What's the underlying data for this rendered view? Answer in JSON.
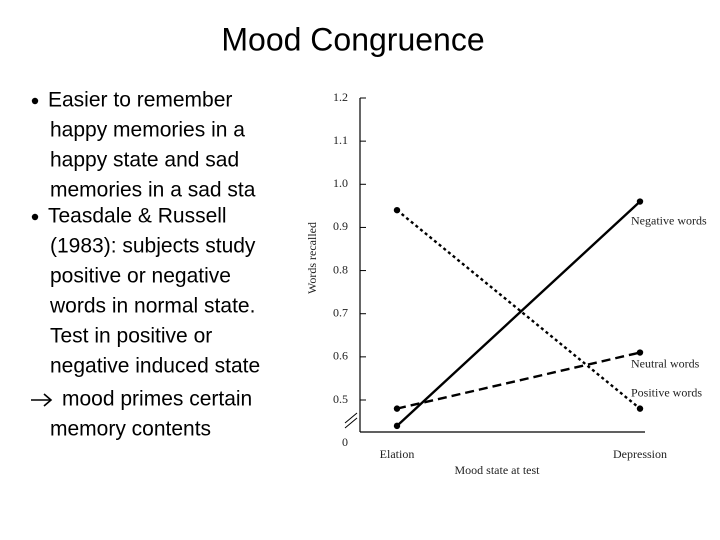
{
  "title": "Mood Congruence",
  "bullets": [
    {
      "lines": [
        "Easier to remember",
        "happy memories in a",
        "happy state and sad",
        "memories in a sad sta"
      ]
    },
    {
      "lines": [
        "Teasdale & Russell",
        "(1983): subjects study",
        "positive or negative",
        "words in normal state.",
        "Test in positive or",
        "negative induced state"
      ]
    }
  ],
  "conclusion": {
    "lines": [
      "mood primes certain",
      "memory contents"
    ]
  },
  "chart_data": {
    "type": "line",
    "x_label": "Mood state at test",
    "y_label": "Words recalled",
    "categories": [
      "Elation",
      "Depression"
    ],
    "series": [
      {
        "name": "Negative words",
        "color": "#000000",
        "style": "solid",
        "values": [
          0.44,
          0.96
        ]
      },
      {
        "name": "Neutral words",
        "color": "#000000",
        "style": "dashed",
        "values": [
          0.48,
          0.61
        ]
      },
      {
        "name": "Positive words",
        "color": "#000000",
        "style": "dotted",
        "values": [
          0.94,
          0.48
        ]
      }
    ],
    "ylim": [
      0,
      1.2
    ],
    "yticks": [
      0,
      0.5,
      0.6,
      0.7,
      0.8,
      0.9,
      {
        "value": 1,
        "label": "1.0"
      },
      1.1,
      1.2
    ],
    "axis_break": true,
    "grid": false
  }
}
